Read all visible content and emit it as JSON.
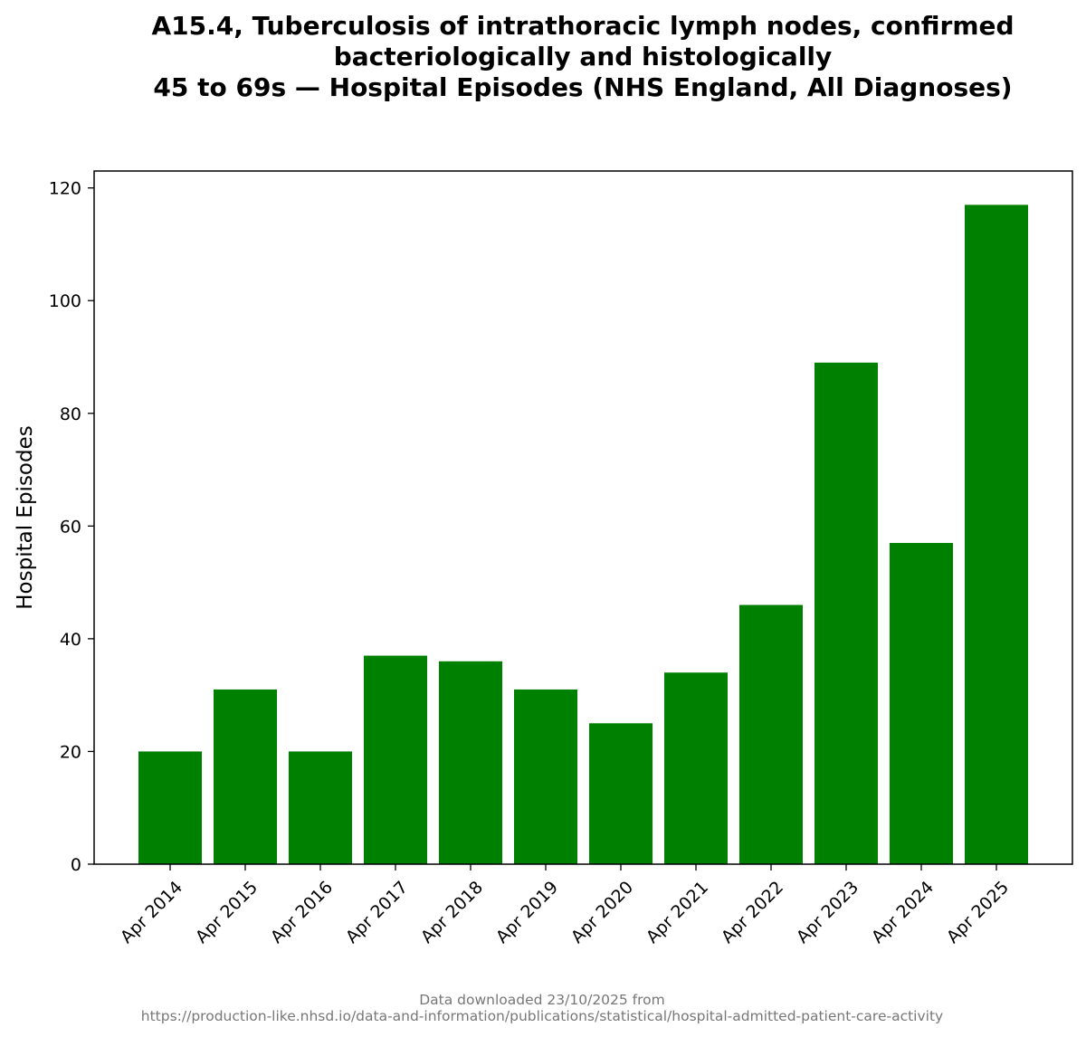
{
  "chart_data": {
    "type": "bar",
    "title_lines": [
      "A15.4, Tuberculosis of intrathoracic lymph nodes, confirmed",
      "bacteriologically and histologically",
      "45 to 69s — Hospital Episodes (NHS England, All Diagnoses)"
    ],
    "xlabel": "",
    "ylabel": "Hospital Episodes",
    "categories": [
      "Apr 2014",
      "Apr 2015",
      "Apr 2016",
      "Apr 2017",
      "Apr 2018",
      "Apr 2019",
      "Apr 2020",
      "Apr 2021",
      "Apr 2022",
      "Apr 2023",
      "Apr 2024",
      "Apr 2025"
    ],
    "values": [
      20,
      31,
      20,
      37,
      36,
      31,
      25,
      34,
      46,
      89,
      57,
      117
    ],
    "ylim": [
      0,
      123
    ],
    "yticks": [
      0,
      20,
      40,
      60,
      80,
      100,
      120
    ],
    "bar_color": "#008000",
    "grid": false,
    "legend": "none"
  },
  "footer": {
    "line1": "Data downloaded 23/10/2025 from",
    "line2": "https://production-like.nhsd.io/data-and-information/publications/statistical/hospital-admitted-patient-care-activity"
  }
}
